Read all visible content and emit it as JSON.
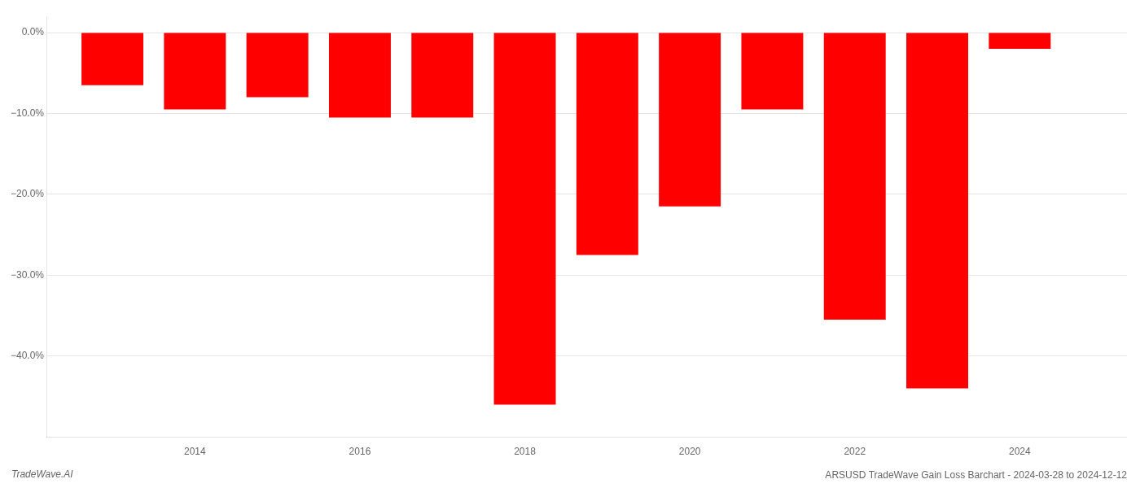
{
  "chart_data": {
    "type": "bar",
    "title": "ARSUSD TradeWave Gain Loss Barchart - 2024-03-28 to 2024-12-12",
    "annotations": [
      "TradeWave.AI"
    ],
    "x": [
      2013,
      2014,
      2015,
      2016,
      2017,
      2018,
      2019,
      2020,
      2021,
      2022,
      2023,
      2024
    ],
    "values": [
      -6.5,
      -9.5,
      -8.0,
      -10.5,
      -10.5,
      -46.0,
      -27.5,
      -21.5,
      -9.5,
      -35.5,
      -44.0,
      -2.0
    ],
    "color": "#ff0000",
    "xlim": [
      2012.2,
      2025.3
    ],
    "xticks": [
      2014,
      2016,
      2018,
      2020,
      2022,
      2024
    ],
    "ylim": [
      -50,
      2
    ],
    "yticks": [
      {
        "value": 0.0,
        "label": "0.0%"
      },
      {
        "value": -10.0,
        "label": "−10.0%"
      },
      {
        "value": -20.0,
        "label": "−20.0%"
      },
      {
        "value": -30.0,
        "label": "−30.0%"
      },
      {
        "value": -40.0,
        "label": "−40.0%"
      }
    ],
    "grid": true
  }
}
